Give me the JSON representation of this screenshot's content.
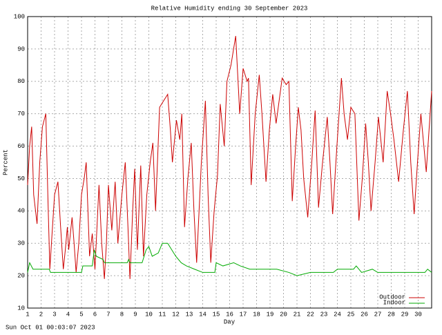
{
  "chart_data": {
    "type": "line",
    "title": "Relative Humidity ending 30 September 2023",
    "x_label": "Day",
    "y_label": "Percent",
    "timestamp": "Sun Oct 01 00:03:07 2023",
    "xlim": [
      1,
      31
    ],
    "xticks": [
      1,
      2,
      3,
      4,
      5,
      6,
      7,
      8,
      9,
      10,
      11,
      12,
      13,
      14,
      15,
      16,
      17,
      18,
      19,
      20,
      21,
      22,
      23,
      24,
      25,
      26,
      27,
      28,
      29,
      30
    ],
    "ylim": [
      10,
      100
    ],
    "yticks": [
      10,
      20,
      30,
      40,
      50,
      60,
      70,
      80,
      90,
      100
    ],
    "grid": true,
    "legend": "lower right",
    "series": [
      {
        "name": "Outdoor",
        "color": "#cc0000",
        "x": [
          1.0,
          1.15,
          1.3,
          1.45,
          1.7,
          1.9,
          2.1,
          2.35,
          2.5,
          2.65,
          2.8,
          3.0,
          3.25,
          3.45,
          3.65,
          3.8,
          3.95,
          4.05,
          4.3,
          4.45,
          4.6,
          4.8,
          5.0,
          5.2,
          5.35,
          5.6,
          5.8,
          6.0,
          6.15,
          6.3,
          6.5,
          6.7,
          6.85,
          7.0,
          7.25,
          7.5,
          7.7,
          8.0,
          8.25,
          8.45,
          8.6,
          8.8,
          8.95,
          9.15,
          9.4,
          9.6,
          9.85,
          10.1,
          10.3,
          10.5,
          10.8,
          11.1,
          11.4,
          11.6,
          11.75,
          12.05,
          12.3,
          12.45,
          12.65,
          12.9,
          13.15,
          13.35,
          13.55,
          13.9,
          14.2,
          14.4,
          14.6,
          14.85,
          15.1,
          15.3,
          15.6,
          15.8,
          16.1,
          16.45,
          16.75,
          17.0,
          17.3,
          17.4,
          17.6,
          17.9,
          18.2,
          18.4,
          18.7,
          18.95,
          19.2,
          19.45,
          19.9,
          20.2,
          20.4,
          20.65,
          20.9,
          21.1,
          21.3,
          21.5,
          21.8,
          22.1,
          22.35,
          22.6,
          22.9,
          23.25,
          23.45,
          23.65,
          23.95,
          24.3,
          24.5,
          24.75,
          25.0,
          25.3,
          25.6,
          25.85,
          26.1,
          26.3,
          26.5,
          26.8,
          27.05,
          27.4,
          27.7,
          27.95,
          28.2,
          28.55,
          28.9,
          29.2,
          29.45,
          29.7,
          29.95,
          30.2,
          30.6,
          31.0
        ],
        "values": [
          48,
          60,
          66,
          45,
          36,
          55,
          66,
          70,
          45,
          22,
          32,
          45,
          49,
          35,
          22,
          28,
          35,
          28,
          38,
          30,
          21,
          30,
          45,
          50,
          55,
          26,
          33,
          22,
          35,
          48,
          30,
          19,
          30,
          48,
          34,
          49,
          30,
          45,
          55,
          35,
          19,
          40,
          53,
          28,
          54,
          26,
          45,
          55,
          61,
          40,
          72,
          74,
          76,
          65,
          55,
          68,
          62,
          70,
          35,
          50,
          61,
          40,
          24,
          55,
          74,
          45,
          24,
          40,
          51,
          73,
          60,
          80,
          85,
          94,
          70,
          84,
          80,
          81,
          48,
          70,
          82,
          70,
          49,
          65,
          76,
          67,
          81,
          79,
          80,
          43,
          60,
          72,
          65,
          50,
          38,
          55,
          71,
          41,
          55,
          69,
          55,
          39,
          59,
          81,
          70,
          62,
          72,
          70,
          37,
          50,
          67,
          55,
          40,
          55,
          69,
          55,
          77,
          70,
          62,
          49,
          65,
          77,
          55,
          39,
          55,
          70,
          52,
          77
        ]
      },
      {
        "name": "Indoor",
        "color": "#00aa00",
        "x": [
          1.0,
          1.15,
          1.4,
          2.6,
          2.7,
          5.0,
          5.1,
          5.8,
          5.95,
          6.1,
          6.6,
          6.7,
          8.4,
          8.5,
          8.6,
          9.5,
          9.8,
          10.0,
          10.25,
          10.7,
          11.0,
          11.4,
          11.7,
          12.0,
          12.4,
          12.8,
          13.4,
          14.0,
          14.9,
          15.0,
          15.5,
          16.3,
          16.8,
          17.5,
          19.5,
          20.4,
          21.0,
          22.0,
          23.7,
          24.0,
          25.2,
          25.4,
          25.8,
          26.6,
          27.0,
          30.5,
          30.7,
          31.0
        ],
        "values": [
          21,
          24,
          22,
          22,
          21,
          21,
          23,
          23,
          28,
          26,
          25,
          24,
          24,
          25,
          24,
          24,
          28,
          29,
          26,
          27,
          30,
          30,
          28,
          26,
          24,
          23,
          22,
          21,
          21,
          24,
          23,
          24,
          23,
          22,
          22,
          21,
          20,
          21,
          21,
          22,
          22,
          23,
          21,
          22,
          21,
          21,
          22,
          21
        ]
      }
    ]
  }
}
